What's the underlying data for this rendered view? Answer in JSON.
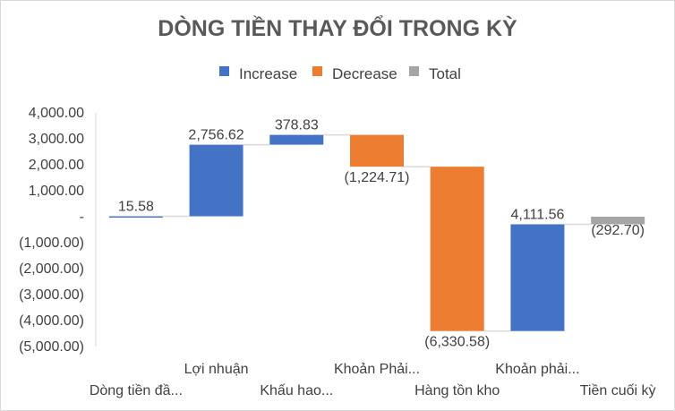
{
  "chart_data": {
    "type": "waterfall",
    "title": "DÒNG TIỀN THAY ĐỔI TRONG KỲ",
    "legend": [
      {
        "name": "Increase",
        "color": "#4472c4"
      },
      {
        "name": "Decrease",
        "color": "#ed7d31"
      },
      {
        "name": "Total",
        "color": "#a5a5a5"
      }
    ],
    "categories": [
      "Dòng tiền đầ...",
      "Lợi nhuận",
      "Khấu hao...",
      "Khoản Phải...",
      "Hàng tồn kho",
      "Khoản phải...",
      "Tiền cuối kỳ"
    ],
    "values": [
      15.58,
      2756.62,
      378.83,
      -1224.71,
      -6330.58,
      4111.56,
      -292.7
    ],
    "kinds": [
      "increase",
      "increase",
      "increase",
      "decrease",
      "decrease",
      "increase",
      "total"
    ],
    "data_labels": [
      "15.58",
      "2,756.62",
      "378.83",
      "(1,224.71)",
      "(6,330.58)",
      "4,111.56",
      "(292.70)"
    ],
    "y_ticks": [
      {
        "value": 4000,
        "label": "4,000.00"
      },
      {
        "value": 3000,
        "label": "3,000.00"
      },
      {
        "value": 2000,
        "label": "2,000.00"
      },
      {
        "value": 1000,
        "label": "1,000.00"
      },
      {
        "value": 0,
        "label": "-"
      },
      {
        "value": -1000,
        "label": "(1,000.00)"
      },
      {
        "value": -2000,
        "label": "(2,000.00)"
      },
      {
        "value": -3000,
        "label": "(3,000.00)"
      },
      {
        "value": -4000,
        "label": "(4,000.00)"
      },
      {
        "value": -5000,
        "label": "(5,000.00)"
      }
    ],
    "ylim": [
      -5000,
      4000
    ],
    "legend_position": "top-center",
    "colors": {
      "increase": "#4472c4",
      "decrease": "#ed7d31",
      "total": "#a5a5a5",
      "connector": "#d9d9d9",
      "axis": "#d9d9d9",
      "text": "#404040",
      "title": "#595959"
    }
  }
}
